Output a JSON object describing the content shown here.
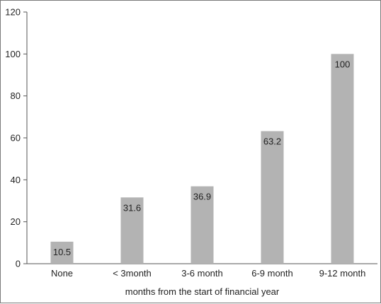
{
  "chart_data": {
    "type": "bar",
    "categories": [
      "None",
      "< 3month",
      "3-6 month",
      "6-9 month",
      "9-12 month"
    ],
    "values": [
      10.5,
      31.6,
      36.9,
      63.2,
      100
    ],
    "data_labels": [
      "10.5",
      "31.6",
      "36.9",
      "63.2",
      "100"
    ],
    "title": "",
    "xlabel": "months from the start of financial year",
    "ylabel": "",
    "ylim": [
      0,
      120
    ],
    "yticks": [
      0,
      20,
      40,
      60,
      80,
      100,
      120
    ],
    "grid": false,
    "legend": "none",
    "bar_color": "#b3b3b3",
    "axis_color": "#555555"
  }
}
